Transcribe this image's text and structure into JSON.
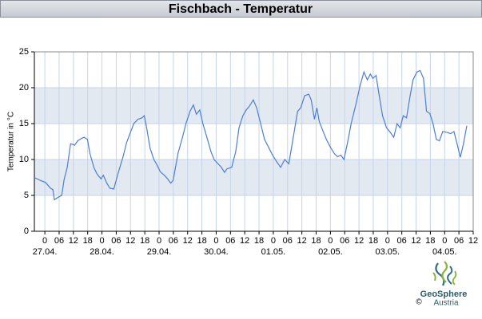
{
  "chart_data": {
    "type": "line",
    "title": "Fischbach - Temperatur",
    "y_label": "Temperatur in °C",
    "color": "#4a7fd4",
    "bands": true,
    "grid": true,
    "xlim": [
      -4.4,
      180
    ],
    "ylim": [
      0,
      25
    ],
    "yticks": [
      0,
      5,
      10,
      15,
      20,
      25
    ],
    "xticks": [
      0,
      {
        "value": 6,
        "label": "06"
      },
      12,
      18,
      {
        "value": 24,
        "label": "0"
      },
      {
        "value": 30,
        "label": "06"
      },
      {
        "value": 36,
        "label": "12"
      },
      {
        "value": 42,
        "label": "18"
      },
      {
        "value": 48,
        "label": "0"
      },
      {
        "value": 54,
        "label": "06"
      },
      {
        "value": 60,
        "label": "12"
      },
      {
        "value": 66,
        "label": "18"
      },
      {
        "value": 72,
        "label": "0"
      },
      {
        "value": 78,
        "label": "06"
      },
      {
        "value": 84,
        "label": "12"
      },
      {
        "value": 90,
        "label": "18"
      },
      {
        "value": 96,
        "label": "0"
      },
      {
        "value": 102,
        "label": "06"
      },
      {
        "value": 108,
        "label": "12"
      },
      {
        "value": 114,
        "label": "18"
      },
      {
        "value": 120,
        "label": "0"
      },
      {
        "value": 126,
        "label": "06"
      },
      {
        "value": 132,
        "label": "12"
      },
      {
        "value": 138,
        "label": "18"
      },
      {
        "value": 144,
        "label": "0"
      },
      {
        "value": 150,
        "label": "06"
      },
      {
        "value": 156,
        "label": "12"
      },
      {
        "value": 162,
        "label": "18"
      },
      {
        "value": 168,
        "label": "0"
      },
      {
        "value": 174,
        "label": "06"
      },
      {
        "value": 180,
        "label": "12"
      }
    ],
    "day_labels": [
      {
        "value": 0,
        "label": "27.04."
      },
      {
        "value": 24,
        "label": "28.04."
      },
      {
        "value": 48,
        "label": "29.04."
      },
      {
        "value": 72,
        "label": "30.04."
      },
      {
        "value": 96,
        "label": "01.05."
      },
      {
        "value": 120,
        "label": "02.05."
      },
      {
        "value": 144,
        "label": "03.05."
      },
      {
        "value": 168,
        "label": "04.05."
      }
    ],
    "x": [
      -4.4,
      -2.0,
      0.3,
      2.4,
      3.4,
      4.0,
      5.4,
      7.1,
      8.1,
      9.4,
      10.8,
      12.5,
      13.8,
      15.2,
      16.5,
      17.9,
      18.9,
      20.6,
      21.9,
      23.6,
      24.6,
      25.9,
      27.3,
      29.0,
      30.7,
      32.7,
      34.4,
      36.1,
      37.4,
      39.1,
      40.8,
      41.8,
      42.8,
      44.2,
      45.8,
      47.2,
      48.5,
      50.2,
      51.6,
      52.9,
      53.9,
      56.0,
      58.0,
      59.3,
      61.0,
      62.4,
      63.7,
      65.1,
      66.4,
      68.1,
      69.8,
      71.1,
      72.8,
      74.2,
      75.5,
      76.5,
      78.5,
      80.2,
      81.6,
      83.2,
      84.6,
      85.9,
      87.6,
      89.0,
      90.7,
      92.3,
      94.0,
      95.7,
      97.4,
      99.1,
      100.8,
      102.5,
      104.5,
      106.2,
      107.5,
      109.2,
      110.9,
      111.9,
      113.3,
      114.3,
      115.3,
      116.6,
      118.3,
      120.0,
      121.7,
      123.0,
      124.4,
      125.7,
      127.1,
      128.7,
      130.8,
      132.4,
      134.1,
      135.5,
      136.8,
      137.8,
      139.2,
      140.5,
      141.9,
      143.6,
      144.9,
      146.6,
      148.0,
      149.3,
      150.6,
      152.0,
      153.4,
      154.7,
      156.4,
      157.7,
      159.1,
      160.4,
      161.8,
      163.1,
      164.5,
      165.8,
      167.2,
      168.8,
      170.5,
      171.9,
      173.2,
      174.6,
      175.9,
      177.3
    ],
    "values": [
      7.5,
      7.1,
      6.8,
      6.0,
      5.8,
      4.4,
      4.7,
      5.0,
      7.2,
      8.9,
      12.2,
      12.0,
      12.6,
      12.9,
      13.1,
      12.8,
      10.9,
      8.9,
      8.0,
      7.3,
      7.8,
      6.8,
      6.0,
      5.9,
      8.0,
      10.2,
      12.4,
      13.9,
      15.0,
      15.6,
      15.8,
      16.1,
      14.4,
      11.6,
      10.0,
      9.2,
      8.3,
      7.8,
      7.3,
      6.7,
      7.1,
      10.9,
      13.3,
      15.0,
      16.7,
      17.6,
      16.3,
      16.9,
      15.0,
      13.1,
      11.1,
      10.0,
      9.4,
      8.9,
      8.2,
      8.7,
      8.9,
      11.1,
      14.4,
      16.1,
      16.9,
      17.4,
      18.3,
      17.2,
      15.0,
      12.8,
      11.7,
      10.6,
      9.7,
      8.9,
      10.0,
      9.4,
      13.3,
      16.7,
      17.2,
      18.9,
      19.1,
      18.3,
      15.6,
      17.2,
      15.3,
      14.2,
      12.8,
      11.7,
      10.8,
      10.4,
      10.6,
      10.0,
      12.2,
      15.0,
      17.8,
      20.2,
      22.2,
      21.1,
      21.9,
      21.3,
      21.7,
      18.9,
      16.1,
      14.4,
      13.9,
      13.1,
      15.0,
      14.4,
      16.1,
      15.8,
      18.7,
      21.1,
      22.2,
      22.4,
      21.3,
      16.7,
      16.4,
      15.0,
      12.8,
      12.6,
      13.9,
      13.8,
      13.6,
      13.9,
      12.2,
      10.3,
      12.2,
      14.7
    ]
  },
  "logo": {
    "name": "GeoSphere",
    "sub": "Austria",
    "copyright": "©"
  }
}
